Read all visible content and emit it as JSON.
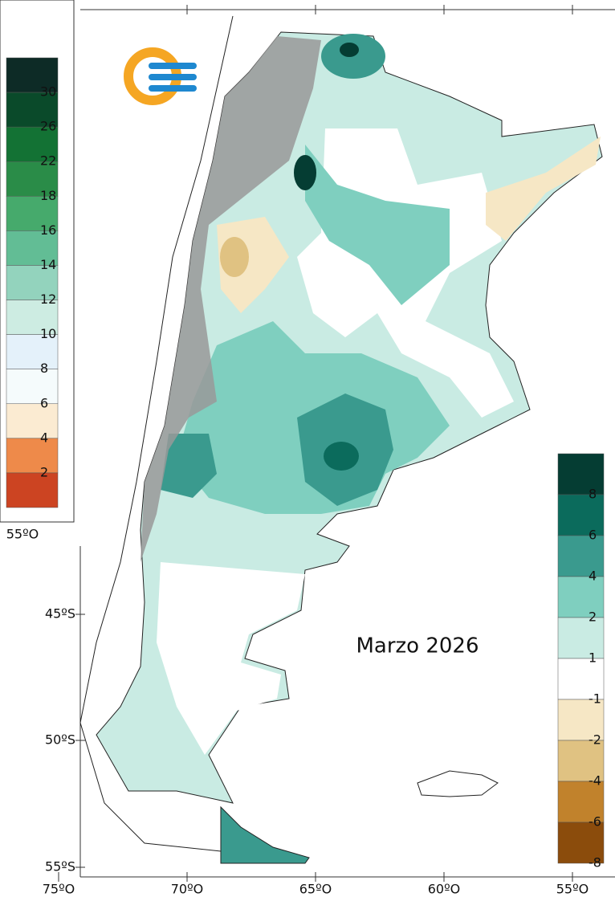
{
  "title": "Marzo 2026",
  "inset_label": "55ºO",
  "left_legend": {
    "labels": [
      "30",
      "26",
      "22",
      "18",
      "16",
      "14",
      "12",
      "10",
      "8",
      "6",
      "4",
      "2"
    ],
    "colors": [
      "#0d2b26",
      "#0a4a2a",
      "#137234",
      "#2a8c48",
      "#46aa6c",
      "#62bd95",
      "#93d3bd",
      "#cdece2",
      "#e4f1fa",
      "#f5fbfc",
      "#fbebd2",
      "#ee8a4a",
      "#cc4422"
    ]
  },
  "right_legend": {
    "labels": [
      "8",
      "6",
      "4",
      "2",
      "1",
      "-1",
      "-2",
      "-4",
      "-6",
      "-8"
    ],
    "colors": [
      "#053d33",
      "#0b6b5c",
      "#3a9a8e",
      "#7fcfbf",
      "#c9ebe3",
      "#ffffff",
      "#f6e7c5",
      "#e0c282",
      "#c1822c",
      "#8b4c0c"
    ]
  },
  "axes": {
    "lat_labels": [
      "45ºS",
      "50ºS",
      "55ºS"
    ],
    "lon_labels": [
      "75ºO",
      "70ºO",
      "65ºO",
      "60ºO",
      "55ºO"
    ]
  }
}
